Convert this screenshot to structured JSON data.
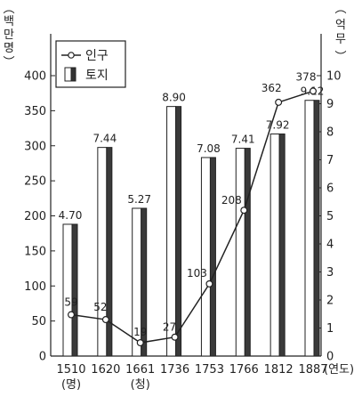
{
  "chart_data": {
    "type": "bar",
    "categories": [
      "1510",
      "1620",
      "1661",
      "1736",
      "1753",
      "1766",
      "1812",
      "1887"
    ],
    "category_sublabels": [
      "(명)",
      "",
      "(청)",
      "",
      "",
      "",
      "",
      ""
    ],
    "x_unit": "(연도)",
    "series": [
      {
        "name": "인구",
        "kind": "line",
        "axis": "left",
        "unit_label": [
          "백",
          "만",
          "명"
        ],
        "values": [
          59,
          52,
          19,
          27,
          103,
          208,
          362,
          378
        ]
      },
      {
        "name": "토지",
        "kind": "bar",
        "axis": "right",
        "unit_label": [
          "억",
          "무"
        ],
        "values": [
          4.7,
          7.44,
          5.27,
          8.9,
          7.08,
          7.41,
          7.92,
          9.12
        ],
        "value_labels": [
          "4.70",
          "7.44",
          "5.27",
          "8.90",
          "7.08",
          "7.41",
          "7.92",
          "9.12"
        ]
      }
    ],
    "y_left": {
      "ylim": [
        0,
        400
      ],
      "ticks": [
        0,
        50,
        100,
        150,
        200,
        250,
        300,
        350,
        400
      ]
    },
    "y_right": {
      "ylim": [
        0,
        10
      ],
      "ticks": [
        0,
        1,
        2,
        3,
        4,
        5,
        6,
        7,
        8,
        9,
        10
      ]
    },
    "legend": {
      "placement": "top-left",
      "items": [
        "인구",
        "토지"
      ]
    },
    "grid": false
  }
}
